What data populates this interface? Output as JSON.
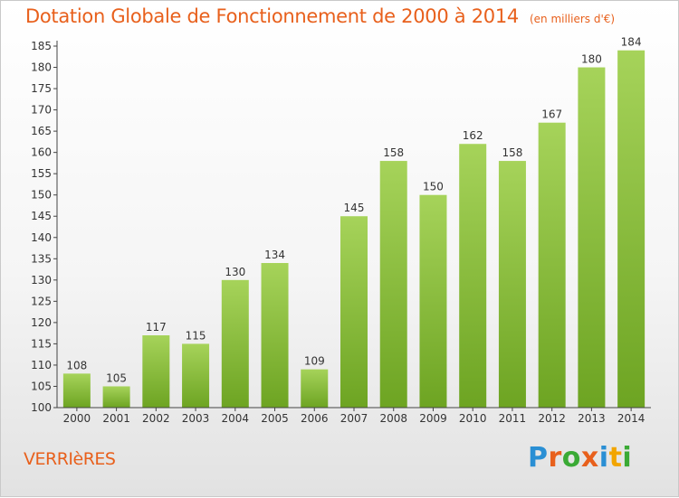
{
  "title": "Dotation Globale de Fonctionnement de 2000 à 2014",
  "unit_note": "(en milliers d'€)",
  "place": "VERRIèRES",
  "logo": {
    "text": "Proxiti",
    "letter_colors": [
      "#2a8fd4",
      "#e8601c",
      "#3aaa35",
      "#e8601c",
      "#2a8fd4",
      "#f2a500",
      "#3aaa35"
    ]
  },
  "colors": {
    "bar_top": "#a6d35a",
    "bar_bottom": "#6da422",
    "accent": "#e8601c"
  },
  "chart_data": {
    "type": "bar",
    "categories": [
      "2000",
      "2001",
      "2002",
      "2003",
      "2004",
      "2005",
      "2006",
      "2007",
      "2008",
      "2009",
      "2010",
      "2011",
      "2012",
      "2013",
      "2014"
    ],
    "values": [
      108,
      105,
      117,
      115,
      130,
      134,
      109,
      145,
      158,
      150,
      162,
      158,
      167,
      180,
      184
    ],
    "title": "Dotation Globale de Fonctionnement de 2000 à 2014",
    "ylim": [
      100,
      185
    ],
    "yticks": [
      100,
      105,
      110,
      115,
      120,
      125,
      130,
      135,
      140,
      145,
      150,
      155,
      160,
      165,
      170,
      175,
      180,
      185
    ],
    "grid": false,
    "data_labels": true
  }
}
